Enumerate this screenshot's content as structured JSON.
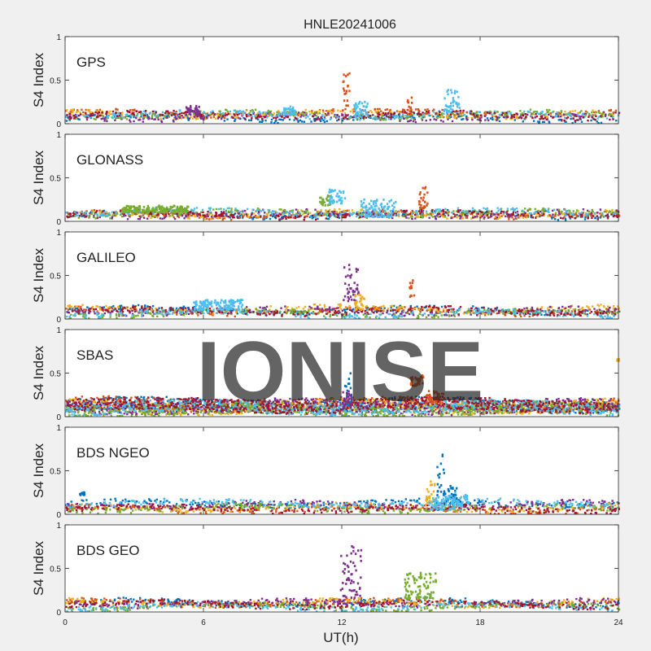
{
  "chart_data": {
    "type": "scatter",
    "title": "HNLE20241006",
    "xlabel": "UT(h)",
    "ylabel": "S4 Index",
    "xlim": [
      0,
      24
    ],
    "ylim": [
      0,
      1
    ],
    "xticks": [
      "0",
      "6",
      "12",
      "18",
      "24"
    ],
    "yticks": [
      "0",
      "0.5",
      "1"
    ],
    "watermark": "IONISE",
    "grid": false,
    "series_colors": [
      "#0072BD",
      "#D95319",
      "#EDB120",
      "#7E2F8E",
      "#77AC30",
      "#4DBEEE",
      "#A2142F"
    ],
    "panels": [
      {
        "label": "GPS",
        "features": [
          {
            "x": [
              12.0,
              12.3
            ],
            "y": [
              0.2,
              0.58
            ],
            "color": "#D95319"
          },
          {
            "x": [
              12.5,
              13.1
            ],
            "y": [
              0.1,
              0.25
            ],
            "color": "#4DBEEE"
          },
          {
            "x": [
              14.8,
              15.0
            ],
            "y": [
              0.1,
              0.33
            ],
            "color": "#D95319"
          },
          {
            "x": [
              16.4,
              17.1
            ],
            "y": [
              0.12,
              0.4
            ],
            "color": "#4DBEEE"
          },
          {
            "x": [
              5.2,
              5.8
            ],
            "y": [
              0.1,
              0.2
            ],
            "color": "#7E2F8E"
          },
          {
            "x": [
              9.4,
              10.0
            ],
            "y": [
              0.1,
              0.2
            ],
            "color": "#4DBEEE"
          }
        ]
      },
      {
        "label": "GLONASS",
        "features": [
          {
            "x": [
              11.0,
              11.5
            ],
            "y": [
              0.18,
              0.3
            ],
            "color": "#77AC30"
          },
          {
            "x": [
              11.4,
              12.1
            ],
            "y": [
              0.2,
              0.37
            ],
            "color": "#4DBEEE"
          },
          {
            "x": [
              15.3,
              15.7
            ],
            "y": [
              0.15,
              0.42
            ],
            "color": "#D95319"
          },
          {
            "x": [
              2.4,
              5.3
            ],
            "y": [
              0.1,
              0.18
            ],
            "color": "#77AC30"
          },
          {
            "x": [
              12.8,
              14.3
            ],
            "y": [
              0.05,
              0.25
            ],
            "color": "#4DBEEE"
          }
        ]
      },
      {
        "label": "GALILEO",
        "features": [
          {
            "x": [
              12.0,
              12.7
            ],
            "y": [
              0.2,
              0.62
            ],
            "color": "#7E2F8E"
          },
          {
            "x": [
              12.5,
              13.0
            ],
            "y": [
              0.1,
              0.28
            ],
            "color": "#EDB120"
          },
          {
            "x": [
              14.9,
              15.1
            ],
            "y": [
              0.25,
              0.45
            ],
            "color": "#D95319"
          },
          {
            "x": [
              5.5,
              7.7
            ],
            "y": [
              0.1,
              0.22
            ],
            "color": "#4DBEEE"
          }
        ]
      },
      {
        "label": "SBAS",
        "features": [
          {
            "x": [
              12.1,
              12.4
            ],
            "y": [
              0.12,
              0.52
            ],
            "color": "#0072BD"
          },
          {
            "x": [
              12.0,
              12.4
            ],
            "y": [
              0.1,
              0.3
            ],
            "color": "#7E2F8E"
          },
          {
            "x": [
              14.9,
              15.5
            ],
            "y": [
              0.35,
              0.48
            ],
            "color": "#D95319"
          },
          {
            "x": [
              15.6,
              16.4
            ],
            "y": [
              0.15,
              0.3
            ],
            "color": "#D95319"
          },
          {
            "x": [
              23.9,
              24.0
            ],
            "y": [
              0.64,
              0.66
            ],
            "color": "#EDB120"
          }
        ]
      },
      {
        "label": "BDS NGEO",
        "features": [
          {
            "x": [
              16.1,
              16.4
            ],
            "y": [
              0.2,
              0.7
            ],
            "color": "#0072BD"
          },
          {
            "x": [
              15.6,
              16.0
            ],
            "y": [
              0.1,
              0.38
            ],
            "color": "#EDB120"
          },
          {
            "x": [
              16.4,
              17.0
            ],
            "y": [
              0.12,
              0.33
            ],
            "color": "#0072BD"
          },
          {
            "x": [
              15.8,
              17.4
            ],
            "y": [
              0.05,
              0.25
            ],
            "color": "#4DBEEE"
          },
          {
            "x": [
              0.6,
              0.8
            ],
            "y": [
              0.22,
              0.26
            ],
            "color": "#0072BD"
          }
        ]
      },
      {
        "label": "BDS GEO",
        "features": [
          {
            "x": [
              11.9,
              12.8
            ],
            "y": [
              0.15,
              0.77
            ],
            "color": "#7E2F8E"
          },
          {
            "x": [
              14.7,
              16.1
            ],
            "y": [
              0.15,
              0.45
            ],
            "color": "#77AC30"
          }
        ]
      }
    ]
  }
}
